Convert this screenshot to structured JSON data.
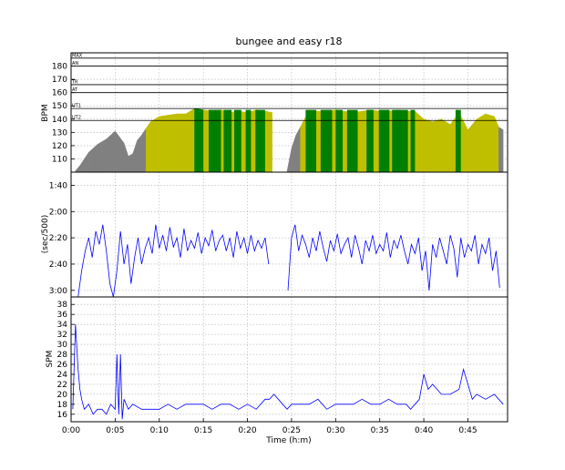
{
  "title": "bungee and easy r18",
  "colors": {
    "gray": "#808080",
    "olive": "#bfbf00",
    "green": "#007f00",
    "line": "#0000ff"
  },
  "chart_data": [
    {
      "type": "area",
      "panel": "heart_rate",
      "ylabel": "BPM",
      "ylim": [
        100,
        190
      ],
      "yticks": [
        110,
        120,
        130,
        140,
        150,
        160,
        170,
        180
      ],
      "grid": true,
      "zone_lines": [
        {
          "label": "MAX",
          "value": 186
        },
        {
          "label": "AN",
          "value": 180
        },
        {
          "label": "TR",
          "value": 166
        },
        {
          "label": "AT",
          "value": 160
        },
        {
          "label": "UT1",
          "value": 148
        },
        {
          "label": "UT2",
          "value": 139
        }
      ],
      "fill_rule": "gray below 120 bpm..., olive in UT2, green in UT1 zone (approximate)",
      "x_min": [
        0.5,
        1.0,
        2.0,
        3.0,
        4.0,
        5.0,
        6.0,
        6.5,
        7.0,
        7.5,
        8.0,
        8.5,
        9.0,
        10.0,
        11.0,
        12.0,
        13.0,
        14.0,
        15.0,
        16.0,
        17.0,
        18.0,
        19.0,
        20.0,
        21.0,
        22.0,
        22.8,
        23.2,
        24.5,
        25.0,
        25.5,
        26.0,
        27.0,
        28.0,
        29.0,
        30.0,
        31.0,
        32.0,
        33.0,
        34.0,
        35.0,
        36.0,
        37.0,
        38.0,
        39.0,
        40.0,
        41.0,
        42.0,
        43.0,
        44.0,
        45.0,
        46.0,
        47.0,
        48.0,
        48.5,
        49.0
      ],
      "bpm": [
        101,
        105,
        115,
        121,
        125,
        131,
        122,
        112,
        114,
        124,
        128,
        133,
        138,
        142,
        143,
        144,
        144,
        148,
        147,
        146,
        147,
        145,
        146,
        145,
        147,
        146,
        145,
        101,
        101,
        118,
        128,
        134,
        147,
        146,
        146,
        147,
        146,
        145,
        146,
        147,
        146,
        146,
        147,
        146,
        146,
        140,
        138,
        140,
        136,
        145,
        132,
        140,
        144,
        142,
        134,
        132
      ],
      "xlim": [
        0,
        49.5
      ]
    },
    {
      "type": "line",
      "panel": "pace",
      "ylabel": "(sec/500)",
      "ylim": [
        185,
        90
      ],
      "yticks": [
        100,
        120,
        140,
        160,
        180
      ],
      "ytick_labels": [
        "1:40",
        "2:00",
        "2:20",
        "2:40",
        "3:00"
      ],
      "grid": true,
      "series": [
        {
          "x_min": [
            0.8,
            1.2,
            1.6,
            2.0,
            2.4,
            2.8,
            3.2,
            3.6,
            4.0,
            4.4,
            4.8,
            5.2,
            5.6,
            6.0,
            6.4,
            6.8,
            7.2,
            7.6,
            8.0,
            8.4,
            8.8,
            9.2,
            9.6,
            10.0,
            10.4,
            10.8,
            11.2,
            11.6,
            12.0,
            12.4,
            12.8,
            13.2,
            13.6,
            14.0,
            14.4,
            14.8,
            15.2,
            15.6,
            16.0,
            16.4,
            16.8,
            17.2,
            17.6,
            18.0,
            18.4,
            18.8,
            19.2,
            19.6,
            20.0,
            20.4,
            20.8,
            21.2,
            21.6,
            22.0,
            22.4
          ],
          "sec": [
            185,
            165,
            150,
            140,
            155,
            135,
            145,
            130,
            150,
            175,
            185,
            165,
            135,
            160,
            145,
            175,
            155,
            140,
            160,
            148,
            140,
            152,
            130,
            148,
            138,
            150,
            132,
            147,
            140,
            155,
            133,
            150,
            142,
            148,
            136,
            152,
            140,
            146,
            134,
            150,
            142,
            138,
            150,
            140,
            155,
            135,
            148,
            140,
            152,
            138,
            150,
            142,
            148,
            140,
            160
          ]
        },
        {
          "x_min": [
            24.6,
            25.0,
            25.4,
            25.8,
            26.2,
            26.6,
            27.0,
            27.4,
            27.8,
            28.2,
            28.6,
            29.0,
            29.4,
            29.8,
            30.2,
            30.6,
            31.0,
            31.4,
            31.8,
            32.2,
            32.6,
            33.0,
            33.4,
            33.8,
            34.2,
            34.6,
            35.0,
            35.4,
            35.8,
            36.2,
            36.6,
            37.0,
            37.4,
            37.8,
            38.2,
            38.6,
            39.0,
            39.4,
            39.8,
            40.2,
            40.6,
            41.0,
            41.4,
            41.8,
            42.2,
            42.6,
            43.0,
            43.4,
            43.8,
            44.2,
            44.6,
            45.0,
            45.4,
            45.8,
            46.2,
            46.6,
            47.0,
            47.4,
            47.8,
            48.2,
            48.6
          ],
          "sec": [
            180,
            140,
            130,
            150,
            138,
            145,
            155,
            140,
            150,
            135,
            148,
            158,
            142,
            150,
            137,
            152,
            145,
            140,
            155,
            138,
            148,
            160,
            142,
            150,
            138,
            152,
            145,
            150,
            136,
            155,
            142,
            148,
            138,
            150,
            160,
            145,
            152,
            140,
            165,
            150,
            180,
            145,
            155,
            140,
            150,
            160,
            138,
            148,
            170,
            140,
            155,
            145,
            150,
            138,
            160,
            145,
            152,
            140,
            165,
            150,
            178
          ]
        }
      ],
      "xlim": [
        0,
        49.5
      ]
    },
    {
      "type": "line",
      "panel": "stroke_rate",
      "ylabel": "SPM",
      "xlabel": "Time (h:m)",
      "ylim": [
        14.5,
        39.5
      ],
      "yticks": [
        16,
        18,
        20,
        22,
        24,
        26,
        28,
        30,
        32,
        34,
        36,
        38
      ],
      "grid": true,
      "x_min": [
        0.2,
        0.5,
        0.8,
        1.0,
        1.2,
        1.5,
        2.0,
        2.5,
        3.0,
        3.5,
        4.0,
        4.5,
        5.0,
        5.2,
        5.4,
        5.6,
        5.8,
        6.0,
        6.5,
        7.0,
        8.0,
        9.0,
        10.0,
        11.0,
        12.0,
        13.0,
        14.0,
        15.0,
        16.0,
        17.0,
        18.0,
        19.0,
        20.0,
        21.0,
        22.0,
        22.5,
        23.0,
        23.5,
        24.0,
        24.5,
        25.0,
        26.0,
        27.0,
        28.0,
        29.0,
        30.0,
        31.0,
        32.0,
        33.0,
        34.0,
        35.0,
        36.0,
        37.0,
        38.0,
        38.5,
        39.0,
        39.5,
        40.0,
        40.5,
        41.0,
        42.0,
        43.0,
        44.0,
        44.5,
        45.0,
        45.5,
        46.0,
        47.0,
        48.0,
        48.5,
        49.0
      ],
      "spm": [
        17,
        34,
        25,
        21,
        19,
        17,
        18,
        16,
        17,
        17,
        16,
        18,
        17,
        28,
        16,
        28,
        15,
        19,
        17,
        18,
        17,
        17,
        17,
        18,
        17,
        18,
        18,
        18,
        17,
        18,
        18,
        17,
        18,
        17,
        19,
        19,
        20,
        19,
        18,
        17,
        18,
        18,
        18,
        19,
        17,
        18,
        18,
        18,
        19,
        18,
        18,
        19,
        18,
        18,
        17,
        18,
        19,
        24,
        21,
        22,
        20,
        20,
        21,
        25,
        22,
        19,
        20,
        19,
        20,
        19,
        18
      ],
      "xlim": [
        0,
        49.5
      ],
      "xticks": [
        0,
        5,
        10,
        15,
        20,
        25,
        30,
        35,
        40,
        45
      ],
      "xtick_labels": [
        "0:00",
        "0:05",
        "0:10",
        "0:15",
        "0:20",
        "0:25",
        "0:30",
        "0:35",
        "0:40",
        "0:45"
      ]
    }
  ]
}
